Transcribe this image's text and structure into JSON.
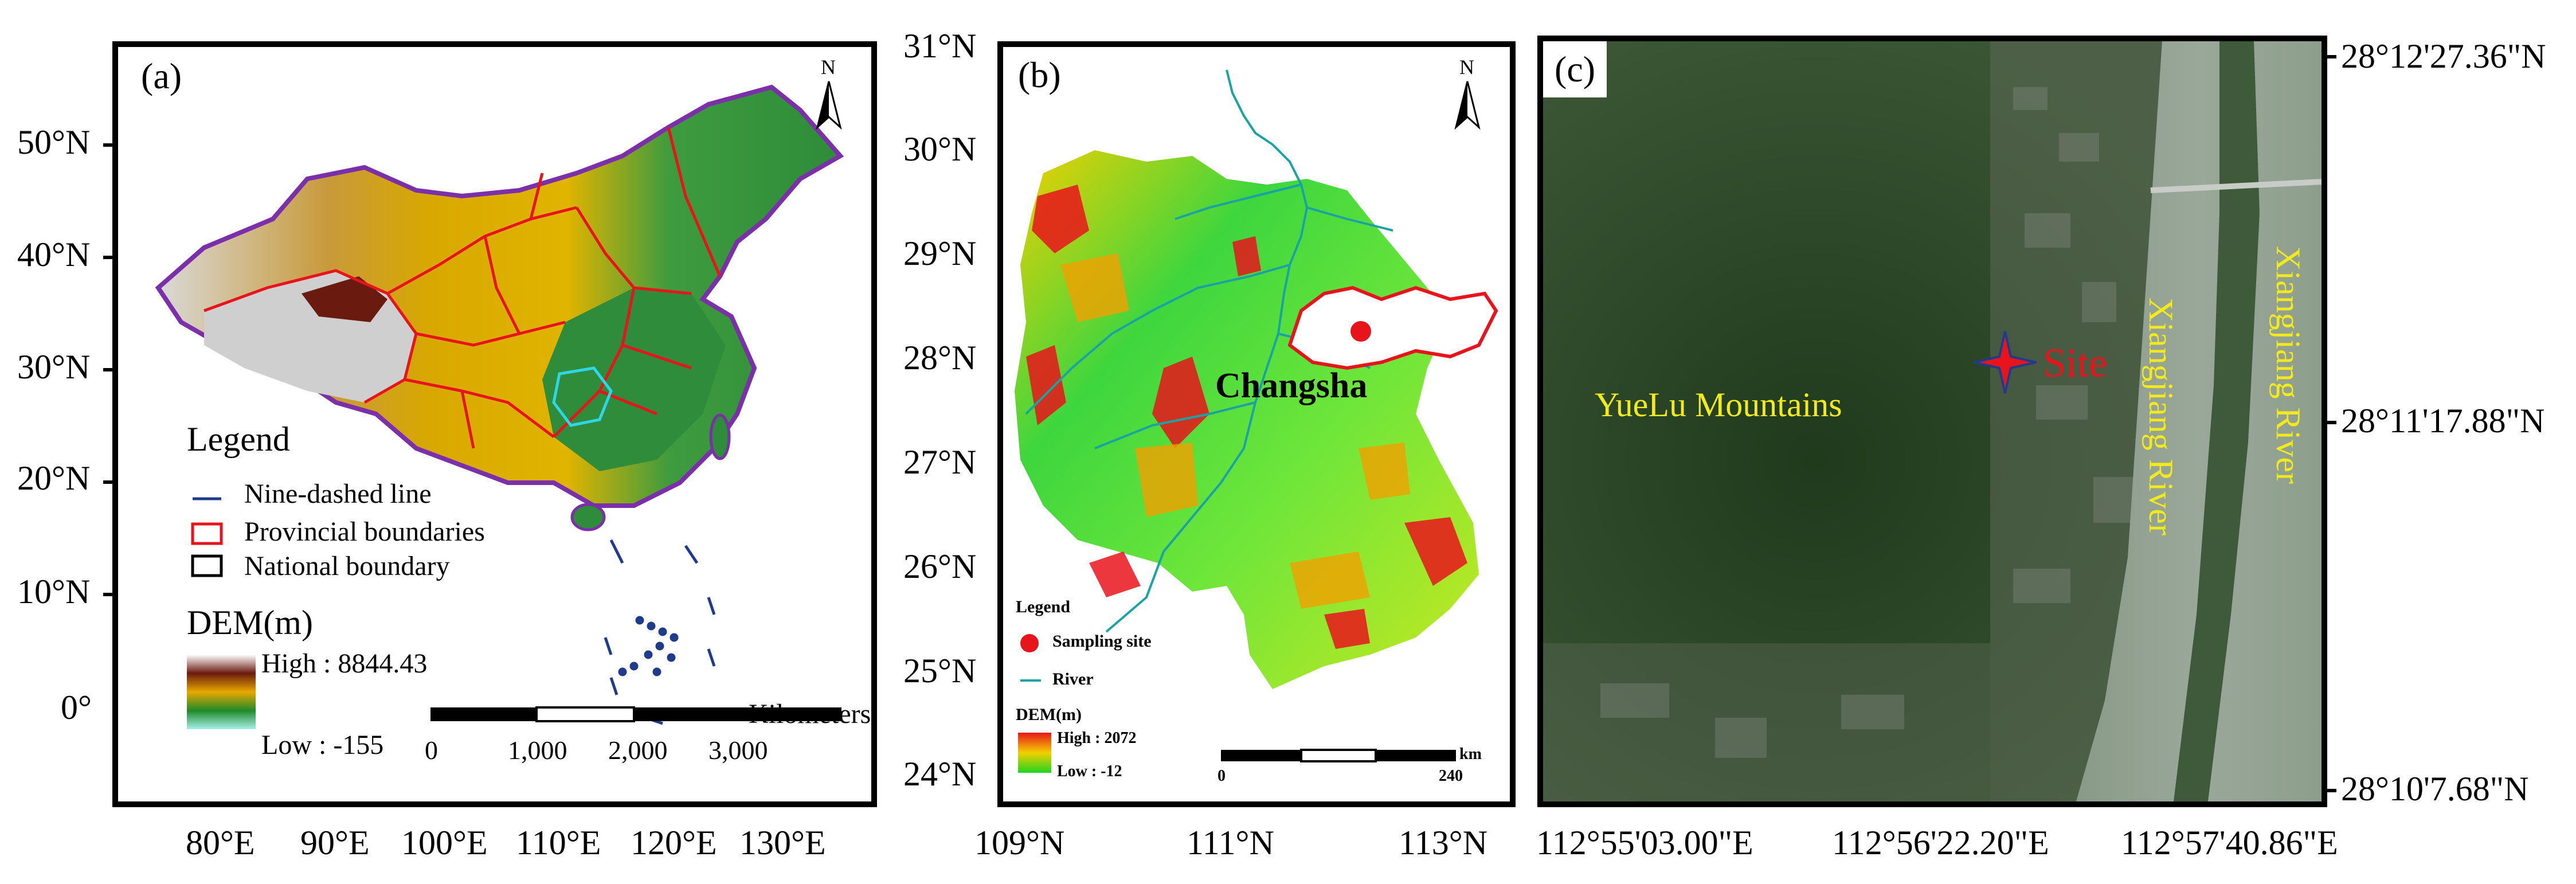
{
  "panel_a": {
    "tag": "(a)",
    "north": "N",
    "legend_title": "Legend",
    "legend_items": [
      "Nine-dashed line",
      "Provincial boundaries",
      "National boundary"
    ],
    "dem_title": "DEM(m)",
    "dem_high": "High : 8844.43",
    "dem_low": "Low : -155",
    "scale_unit": "Kilometers",
    "scale_ticks": [
      "0",
      "1,000",
      "2,000",
      "3,000"
    ],
    "y_ticks": [
      "50°N",
      "40°N",
      "30°N",
      "20°N",
      "10°N",
      "0°"
    ],
    "x_ticks": [
      "80°E",
      "90°E",
      "100°E",
      "110°E",
      "120°E",
      "130°E"
    ],
    "colors": {
      "province": "#e8141b",
      "nation": "#7b2fa8",
      "dashed": "#1f3c8c",
      "changsha_prov": "#2fd6e8"
    }
  },
  "panel_b": {
    "tag": "(b)",
    "north": "N",
    "city": "Changsha",
    "legend_title": "Legend",
    "legend_site": "Sampling site",
    "legend_river": "River",
    "dem_title": "DEM(m)",
    "dem_high": "High : 2072",
    "dem_low": "Low : -12",
    "scale_ticks": [
      "0",
      "240"
    ],
    "scale_unit": "km",
    "y_ticks": [
      "31°N",
      "30°N",
      "29°N",
      "28°N",
      "27°N",
      "26°N",
      "25°N",
      "24°N"
    ],
    "x_ticks": [
      "109°N",
      "111°N",
      "113°N"
    ],
    "colors": {
      "river": "#1aa3a3",
      "site": "#e8141b",
      "boundary": "#e8141b"
    }
  },
  "panel_c": {
    "tag": "(c)",
    "mountains": "YueLu Mountains",
    "site": "Site",
    "river1": "Xiangjiang  River",
    "river2": "Xiangjiang  River",
    "y_ticks": [
      "28°12'27.36\"N",
      "28°11'17.88\"N",
      "28°10'7.68\"N"
    ],
    "x_ticks": [
      "112°55'03.00\"E",
      "112°56'22.20\"E",
      "112°57'40.86\"E"
    ],
    "colors": {
      "label": "#f2ea1a",
      "site": "#e8141b"
    }
  }
}
